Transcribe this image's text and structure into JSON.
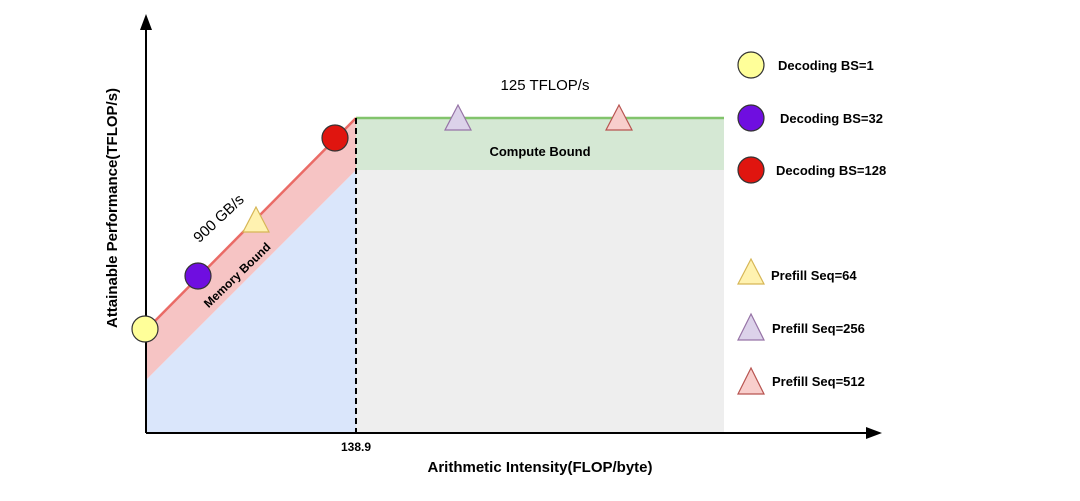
{
  "axes": {
    "xlabel": "Arithmetic Intensity(FLOP/byte)",
    "ylabel": "Attainable Performance(TFLOP/s)",
    "ridge_tick": "138.9"
  },
  "regions": {
    "memory_bound": "Memory Bound",
    "compute_bound": "Compute Bound"
  },
  "annotations": {
    "bandwidth": "900 GB/s",
    "peak": "125 TFLOP/s"
  },
  "legend": {
    "decoding": [
      {
        "label": "Decoding BS=1",
        "color": "#FFFF99"
      },
      {
        "label": "Decoding BS=32",
        "color": "#6F0EE0"
      },
      {
        "label": "Decoding BS=128",
        "color": "#E0150F"
      }
    ],
    "prefill": [
      {
        "label": "Prefill Seq=64",
        "color": "#FFF2B0"
      },
      {
        "label": "Prefill Seq=256",
        "color": "#DCD2EA"
      },
      {
        "label": "Prefill Seq=512",
        "color": "#F8CECC"
      }
    ]
  },
  "colors": {
    "memory_band": "#F6C4C4",
    "memory_line": "#EA6B66",
    "memory_area": "#DAE6FB",
    "compute_band": "#D5E8D4",
    "compute_line": "#82C46C",
    "compute_area": "#EEEEEE"
  }
}
